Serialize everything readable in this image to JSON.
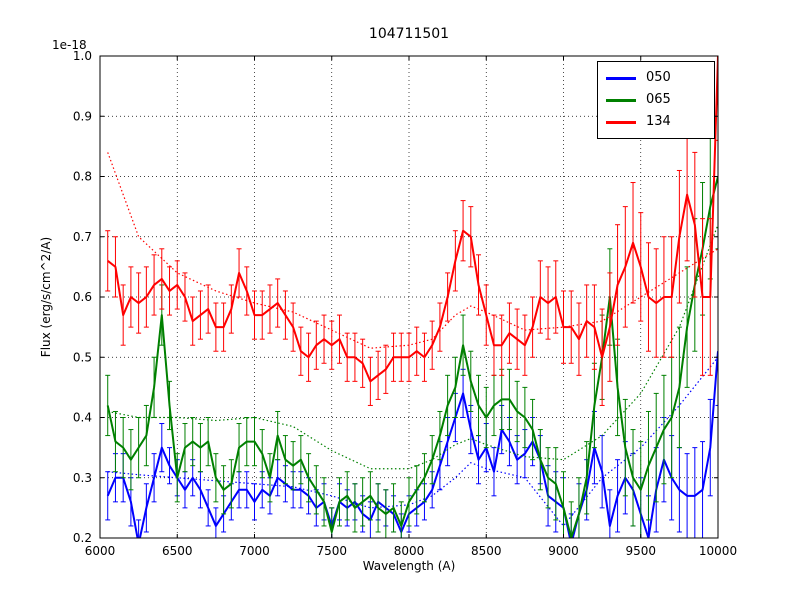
{
  "figure": {
    "title": "104711501",
    "offset_label": "1e-18",
    "xlabel": "Wavelength (A)",
    "ylabel": "Flux (erg/s/cm^2/A)"
  },
  "chart_data": {
    "type": "line",
    "title": "104711501",
    "xlabel": "Wavelength (A)",
    "ylabel": "Flux (erg/s/cm^2/A)",
    "y_offset_label": "1e-18",
    "xlim": [
      6000,
      10000
    ],
    "ylim": [
      0.2,
      1.0
    ],
    "xticks": [
      6000,
      6500,
      7000,
      7500,
      8000,
      8500,
      9000,
      9500,
      10000
    ],
    "yticks": [
      0.2,
      0.3,
      0.4,
      0.5,
      0.6,
      0.7,
      0.8,
      0.9,
      1.0
    ],
    "grid": true,
    "grid_style": "dotted",
    "legend_position": "upper right",
    "x": [
      6050,
      6100,
      6150,
      6200,
      6250,
      6300,
      6350,
      6400,
      6450,
      6500,
      6550,
      6600,
      6650,
      6700,
      6750,
      6800,
      6850,
      6900,
      6950,
      7000,
      7050,
      7100,
      7150,
      7200,
      7250,
      7300,
      7350,
      7400,
      7450,
      7500,
      7550,
      7600,
      7650,
      7700,
      7750,
      7800,
      7850,
      7900,
      7950,
      8000,
      8050,
      8100,
      8150,
      8200,
      8250,
      8300,
      8350,
      8400,
      8450,
      8500,
      8550,
      8600,
      8650,
      8700,
      8750,
      8800,
      8850,
      8900,
      8950,
      9000,
      9050,
      9100,
      9150,
      9200,
      9250,
      9300,
      9350,
      9400,
      9450,
      9500,
      9550,
      9600,
      9650,
      9700,
      9750,
      9800,
      9850,
      9900,
      9950,
      10000
    ],
    "template_x": [
      6050,
      6250,
      6500,
      6750,
      7000,
      7250,
      7500,
      7750,
      8000,
      8150,
      8300,
      8400,
      8500,
      8750,
      9000,
      9250,
      9500,
      9750,
      10000
    ],
    "series": [
      {
        "name": "050",
        "color": "#0000ff",
        "values": [
          0.27,
          0.3,
          0.3,
          0.26,
          0.19,
          0.25,
          0.3,
          0.35,
          0.32,
          0.3,
          0.28,
          0.3,
          0.28,
          0.25,
          0.22,
          0.24,
          0.26,
          0.28,
          0.28,
          0.26,
          0.28,
          0.27,
          0.3,
          0.29,
          0.28,
          0.28,
          0.27,
          0.25,
          0.26,
          0.22,
          0.26,
          0.25,
          0.26,
          0.24,
          0.23,
          0.26,
          0.25,
          0.24,
          0.21,
          0.24,
          0.25,
          0.26,
          0.28,
          0.32,
          0.36,
          0.4,
          0.44,
          0.38,
          0.33,
          0.35,
          0.31,
          0.38,
          0.36,
          0.33,
          0.34,
          0.36,
          0.33,
          0.27,
          0.26,
          0.25,
          0.19,
          0.24,
          0.28,
          0.35,
          0.31,
          0.22,
          0.27,
          0.3,
          0.28,
          0.24,
          0.2,
          0.28,
          0.33,
          0.3,
          0.28,
          0.27,
          0.27,
          0.28,
          0.35,
          0.51
        ],
        "errors": [
          0.04,
          0.04,
          0.04,
          0.04,
          0.04,
          0.04,
          0.04,
          0.04,
          0.03,
          0.03,
          0.03,
          0.03,
          0.03,
          0.03,
          0.03,
          0.03,
          0.03,
          0.03,
          0.03,
          0.03,
          0.03,
          0.03,
          0.03,
          0.03,
          0.03,
          0.03,
          0.03,
          0.03,
          0.03,
          0.03,
          0.03,
          0.03,
          0.03,
          0.03,
          0.03,
          0.03,
          0.03,
          0.03,
          0.03,
          0.03,
          0.03,
          0.03,
          0.03,
          0.04,
          0.04,
          0.04,
          0.04,
          0.04,
          0.04,
          0.04,
          0.04,
          0.04,
          0.04,
          0.04,
          0.04,
          0.04,
          0.04,
          0.05,
          0.05,
          0.05,
          0.05,
          0.05,
          0.05,
          0.06,
          0.06,
          0.06,
          0.06,
          0.06,
          0.06,
          0.06,
          0.07,
          0.07,
          0.07,
          0.07,
          0.07,
          0.07,
          0.08,
          0.08,
          0.08,
          0.09
        ],
        "template_values": [
          0.31,
          0.305,
          0.3,
          0.295,
          0.29,
          0.285,
          0.27,
          0.25,
          0.255,
          0.27,
          0.3,
          0.325,
          0.315,
          0.3,
          0.22,
          0.3,
          0.35,
          0.42,
          0.5
        ]
      },
      {
        "name": "065",
        "color": "#008000",
        "values": [
          0.42,
          0.36,
          0.35,
          0.33,
          0.35,
          0.37,
          0.45,
          0.57,
          0.42,
          0.3,
          0.35,
          0.36,
          0.35,
          0.36,
          0.3,
          0.28,
          0.29,
          0.35,
          0.36,
          0.36,
          0.34,
          0.3,
          0.37,
          0.33,
          0.32,
          0.33,
          0.3,
          0.28,
          0.26,
          0.21,
          0.26,
          0.27,
          0.25,
          0.26,
          0.27,
          0.25,
          0.24,
          0.25,
          0.22,
          0.26,
          0.28,
          0.3,
          0.33,
          0.37,
          0.42,
          0.45,
          0.52,
          0.46,
          0.42,
          0.4,
          0.42,
          0.43,
          0.43,
          0.41,
          0.4,
          0.38,
          0.33,
          0.3,
          0.29,
          0.25,
          0.2,
          0.24,
          0.3,
          0.42,
          0.5,
          0.6,
          0.45,
          0.35,
          0.3,
          0.28,
          0.32,
          0.35,
          0.38,
          0.4,
          0.45,
          0.55,
          0.62,
          0.68,
          0.75,
          0.8
        ],
        "errors": [
          0.05,
          0.05,
          0.05,
          0.05,
          0.05,
          0.05,
          0.05,
          0.05,
          0.04,
          0.04,
          0.04,
          0.04,
          0.04,
          0.04,
          0.04,
          0.04,
          0.04,
          0.04,
          0.04,
          0.04,
          0.04,
          0.04,
          0.04,
          0.04,
          0.04,
          0.04,
          0.04,
          0.04,
          0.04,
          0.04,
          0.04,
          0.04,
          0.04,
          0.04,
          0.04,
          0.04,
          0.04,
          0.04,
          0.04,
          0.04,
          0.04,
          0.04,
          0.04,
          0.04,
          0.05,
          0.05,
          0.05,
          0.05,
          0.05,
          0.05,
          0.05,
          0.05,
          0.05,
          0.05,
          0.05,
          0.05,
          0.05,
          0.05,
          0.06,
          0.06,
          0.06,
          0.06,
          0.06,
          0.07,
          0.07,
          0.08,
          0.08,
          0.08,
          0.08,
          0.08,
          0.09,
          0.09,
          0.09,
          0.1,
          0.1,
          0.1,
          0.11,
          0.11,
          0.12,
          0.12
        ],
        "template_values": [
          0.41,
          0.4,
          0.4,
          0.395,
          0.4,
          0.385,
          0.345,
          0.315,
          0.315,
          0.33,
          0.355,
          0.365,
          0.355,
          0.335,
          0.33,
          0.37,
          0.44,
          0.55,
          0.72
        ]
      },
      {
        "name": "134",
        "color": "#ff0000",
        "values": [
          0.66,
          0.65,
          0.57,
          0.6,
          0.59,
          0.6,
          0.62,
          0.63,
          0.61,
          0.62,
          0.6,
          0.56,
          0.57,
          0.58,
          0.55,
          0.55,
          0.58,
          0.64,
          0.61,
          0.57,
          0.57,
          0.58,
          0.59,
          0.57,
          0.55,
          0.51,
          0.5,
          0.52,
          0.53,
          0.52,
          0.53,
          0.5,
          0.5,
          0.49,
          0.46,
          0.47,
          0.48,
          0.5,
          0.5,
          0.5,
          0.51,
          0.5,
          0.52,
          0.55,
          0.6,
          0.66,
          0.71,
          0.7,
          0.62,
          0.57,
          0.52,
          0.52,
          0.54,
          0.53,
          0.52,
          0.55,
          0.6,
          0.59,
          0.6,
          0.55,
          0.55,
          0.53,
          0.56,
          0.55,
          0.5,
          0.55,
          0.62,
          0.65,
          0.69,
          0.65,
          0.6,
          0.59,
          0.6,
          0.6,
          0.7,
          0.77,
          0.72,
          0.6,
          0.6,
          1.0
        ],
        "errors": [
          0.05,
          0.05,
          0.05,
          0.05,
          0.05,
          0.05,
          0.05,
          0.05,
          0.04,
          0.04,
          0.04,
          0.04,
          0.04,
          0.04,
          0.04,
          0.04,
          0.04,
          0.04,
          0.04,
          0.04,
          0.04,
          0.04,
          0.04,
          0.04,
          0.04,
          0.04,
          0.04,
          0.04,
          0.04,
          0.04,
          0.04,
          0.04,
          0.04,
          0.04,
          0.04,
          0.04,
          0.04,
          0.04,
          0.04,
          0.04,
          0.04,
          0.04,
          0.04,
          0.04,
          0.04,
          0.05,
          0.05,
          0.05,
          0.05,
          0.05,
          0.05,
          0.05,
          0.05,
          0.05,
          0.05,
          0.05,
          0.06,
          0.06,
          0.06,
          0.06,
          0.06,
          0.06,
          0.06,
          0.07,
          0.08,
          0.09,
          0.1,
          0.1,
          0.1,
          0.09,
          0.09,
          0.09,
          0.1,
          0.1,
          0.11,
          0.11,
          0.12,
          0.13,
          0.13,
          0.14
        ],
        "template_values": [
          0.84,
          0.7,
          0.64,
          0.61,
          0.59,
          0.575,
          0.545,
          0.515,
          0.52,
          0.53,
          0.57,
          0.585,
          0.575,
          0.545,
          0.55,
          0.56,
          0.6,
          0.64,
          0.68
        ]
      }
    ]
  }
}
